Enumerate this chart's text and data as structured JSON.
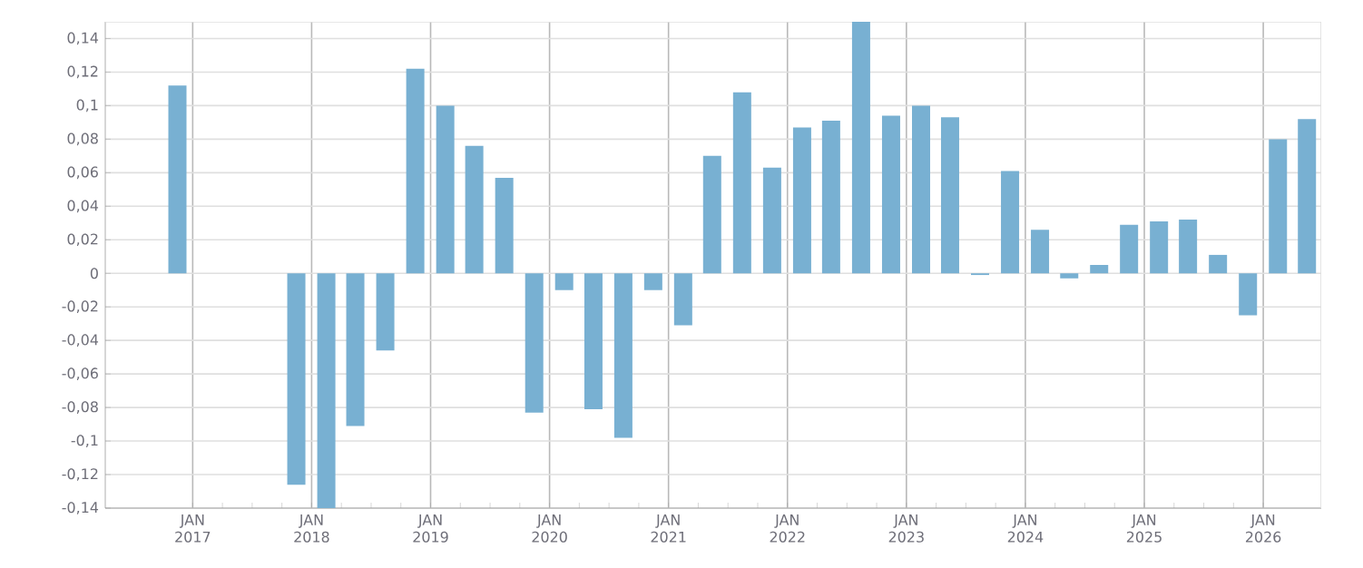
{
  "chart_data": {
    "type": "bar",
    "color": "#78b0d2",
    "x": [
      "2016-11-15",
      "2017-11-15",
      "2018-02-15",
      "2018-05-15",
      "2018-08-15",
      "2018-11-15",
      "2019-02-15",
      "2019-05-15",
      "2019-08-15",
      "2019-11-15",
      "2020-02-15",
      "2020-05-15",
      "2020-08-15",
      "2020-11-15",
      "2021-02-15",
      "2021-05-15",
      "2021-08-15",
      "2021-11-15",
      "2022-02-15",
      "2022-05-15",
      "2022-08-15",
      "2022-11-15",
      "2023-02-15",
      "2023-05-15",
      "2023-08-15",
      "2023-11-15",
      "2024-02-15",
      "2024-05-15",
      "2024-08-15",
      "2024-11-15",
      "2025-02-15",
      "2025-05-15",
      "2025-08-15",
      "2025-11-15",
      "2026-02-15",
      "2026-05-15"
    ],
    "values": [
      0.112,
      -0.126,
      -0.14,
      -0.091,
      -0.046,
      0.122,
      0.1,
      0.076,
      0.057,
      -0.083,
      -0.01,
      -0.081,
      -0.098,
      -0.01,
      -0.031,
      0.07,
      0.108,
      0.063,
      0.087,
      0.091,
      0.15,
      0.094,
      0.1,
      0.093,
      -0.001,
      0.061,
      0.026,
      -0.003,
      0.005,
      0.029,
      0.031,
      0.032,
      0.011,
      -0.025,
      0.08,
      0.092
    ],
    "xlim": [
      "2016-04-07",
      "2026-06-28"
    ],
    "xticks": [
      {
        "value": "2017-01-01",
        "label": "JAN 2017"
      },
      {
        "value": "2018-01-01",
        "label": "JAN 2018"
      },
      {
        "value": "2019-01-01",
        "label": "JAN 2019"
      },
      {
        "value": "2020-01-01",
        "label": "JAN 2020"
      },
      {
        "value": "2021-01-01",
        "label": "JAN 2021"
      },
      {
        "value": "2022-01-01",
        "label": "JAN 2022"
      },
      {
        "value": "2023-01-01",
        "label": "JAN 2023"
      },
      {
        "value": "2024-01-01",
        "label": "JAN 2024"
      },
      {
        "value": "2025-01-01",
        "label": "JAN 2025"
      },
      {
        "value": "2026-01-01",
        "label": "JAN 2026"
      }
    ],
    "ylim": [
      -0.14,
      0.15
    ],
    "yticks": [
      {
        "value": -0.14,
        "label": "-0,14"
      },
      {
        "value": -0.12,
        "label": "-0,12"
      },
      {
        "value": -0.1,
        "label": "-0,1"
      },
      {
        "value": -0.08,
        "label": "-0,08"
      },
      {
        "value": -0.06,
        "label": "-0,06"
      },
      {
        "value": -0.04,
        "label": "-0,04"
      },
      {
        "value": -0.02,
        "label": "-0,02"
      },
      {
        "value": 0,
        "label": "0"
      },
      {
        "value": 0.02,
        "label": "0,02"
      },
      {
        "value": 0.04,
        "label": "0,04"
      },
      {
        "value": 0.06,
        "label": "0,06"
      },
      {
        "value": 0.08,
        "label": "0,08"
      },
      {
        "value": 0.1,
        "label": "0,1"
      },
      {
        "value": 0.12,
        "label": "0,12"
      },
      {
        "value": 0.14,
        "label": "0,14"
      }
    ],
    "grid": true
  }
}
